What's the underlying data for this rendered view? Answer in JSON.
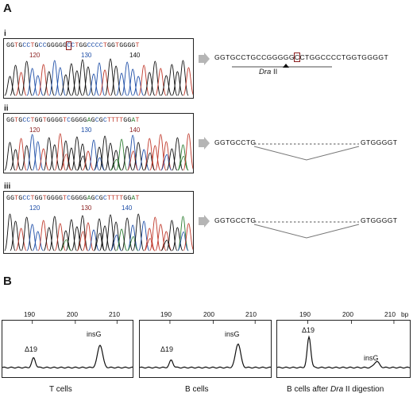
{
  "panel_a": {
    "letter": "A",
    "rows": [
      {
        "roman": "i",
        "sequence": "GGTGCCTGCCGGGGGCCTGGCCCCTGGTGGGGT",
        "boxed_index": 15,
        "positions": [
          "120",
          "130",
          "140"
        ],
        "result": "GGTGCCTGCCGGGGGCCTGGCCCCTGGTGGGGT",
        "result_boxed_index": 15,
        "site_label": "Dra",
        "site_label_suffix": "II"
      },
      {
        "roman": "ii",
        "sequence": "GGTGCCTGGTGGGGTCGGGGAGCGCTTTTGGAT",
        "positions": [
          "120",
          "130",
          "140"
        ],
        "result_left": "GGTGCCTG",
        "result_right": "GTGGGGT"
      },
      {
        "roman": "iii",
        "sequence": "GGTGCCTGGTGGGGTCGGGGAGCGCTTTTGGAT",
        "positions": [
          "120",
          "130",
          "140"
        ],
        "result_left": "GGTGCCTG",
        "result_right": "GTGGGGT"
      }
    ],
    "base_colors": {
      "A": "#2e7d32",
      "C": "#1f4fa8",
      "G": "#111111",
      "T": "#c0392b"
    }
  },
  "panel_b": {
    "letter": "B",
    "panels": [
      {
        "caption": "T cells",
        "caption_italic": "",
        "caption_after": "",
        "ticks": [
          "190",
          "200",
          "210"
        ],
        "unit": "",
        "peak_left": "Δ19",
        "peak_right": "insG",
        "delta_height": 0.22,
        "insg_height": 0.52
      },
      {
        "caption": "B cells",
        "caption_italic": "",
        "caption_after": "",
        "ticks": [
          "190",
          "200",
          "210"
        ],
        "unit": "",
        "peak_left": "Δ19",
        "peak_right": "insG",
        "delta_height": 0.17,
        "insg_height": 0.55
      },
      {
        "caption": "B cells after ",
        "caption_italic": "Dra",
        "caption_after": " II digestion",
        "ticks": [
          "190",
          "200",
          "210"
        ],
        "unit": "bp",
        "peak_left": "Δ19",
        "peak_right": "insG",
        "delta_height": 0.7,
        "insg_height": 0.14
      }
    ]
  }
}
